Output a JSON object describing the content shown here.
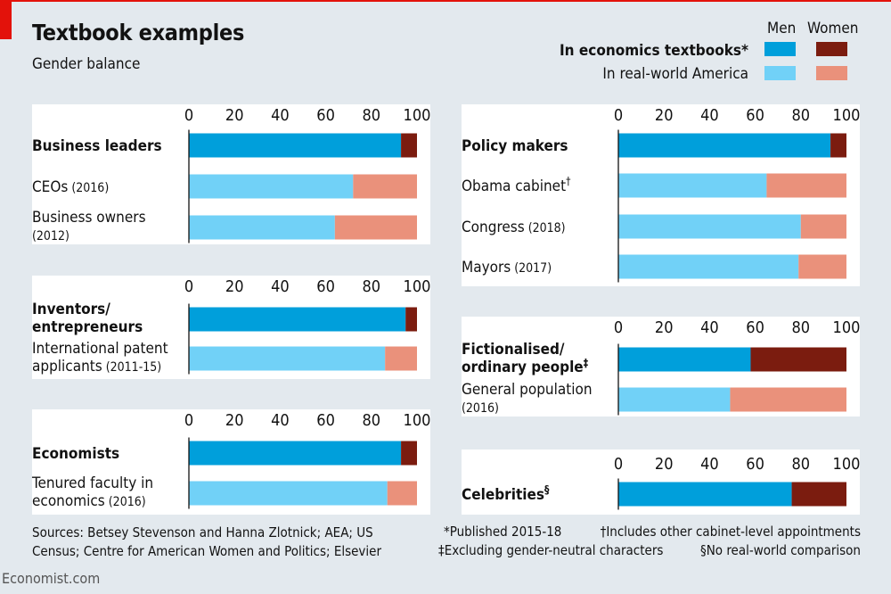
{
  "header": {
    "title": "Textbook examples",
    "subtitle": "Gender balance"
  },
  "legend": {
    "men": "Men",
    "women": "Women",
    "textbooks": "In economics textbooks*",
    "realworld": "In real-world America"
  },
  "colors": {
    "men_textbook": "#009fdb",
    "women_textbook": "#7b1c0f",
    "men_real": "#71d1f7",
    "women_real": "#ea917b",
    "panel": "#ffffff",
    "background": "#e3e9ee",
    "brand_red": "#e3120b"
  },
  "chart_data": {
    "type": "bar",
    "stacked": true,
    "orientation": "horizontal",
    "unit": "%",
    "xlim": [
      0,
      100
    ],
    "ticks": [
      "0",
      "20",
      "40",
      "60",
      "80",
      "100"
    ],
    "series_names": [
      "Men",
      "Women"
    ],
    "panels": [
      {
        "rows": [
          {
            "label": "Business leaders",
            "bold": true,
            "kind": "textbook",
            "men": 93,
            "women": 7
          },
          {
            "label": "CEOs",
            "sub": "(2016)",
            "kind": "real",
            "men": 72,
            "women": 28
          },
          {
            "label": "Business owners",
            "label2": "",
            "sub": "(2012)",
            "kind": "real",
            "men": 64,
            "women": 36
          }
        ]
      },
      {
        "rows": [
          {
            "label": "Inventors/",
            "label2": "entrepreneurs",
            "bold": true,
            "kind": "textbook",
            "men": 95,
            "women": 5
          },
          {
            "label": "International patent",
            "label2": "applicants",
            "sub": "(2011-15)",
            "kind": "real",
            "men": 86,
            "women": 14
          }
        ]
      },
      {
        "rows": [
          {
            "label": "Economists",
            "bold": true,
            "kind": "textbook",
            "men": 93,
            "women": 7
          },
          {
            "label": "Tenured faculty in",
            "label2": "economics",
            "sub": "(2016)",
            "kind": "real",
            "men": 87,
            "women": 13
          }
        ]
      },
      {
        "rows": [
          {
            "label": "Policy makers",
            "bold": true,
            "kind": "textbook",
            "men": 93,
            "women": 7
          },
          {
            "label": "Obama cabinet",
            "sup": "†",
            "kind": "real",
            "men": 65,
            "women": 35
          },
          {
            "label": "Congress",
            "sub": "(2018)",
            "kind": "real",
            "men": 80,
            "women": 20
          },
          {
            "label": "Mayors",
            "sub": "(2017)",
            "kind": "real",
            "men": 79,
            "women": 21
          }
        ]
      },
      {
        "rows": [
          {
            "label": "Fictionalised/",
            "label2": "ordinary people",
            "sup": "‡",
            "bold": true,
            "kind": "textbook",
            "men": 58,
            "women": 42
          },
          {
            "label": "General population",
            "label2": "",
            "sub": "(2016)",
            "kind": "real",
            "men": 49,
            "women": 51
          }
        ]
      },
      {
        "rows": [
          {
            "label": "Celebrities",
            "sup": "§",
            "bold": true,
            "kind": "textbook",
            "men": 76,
            "women": 24
          }
        ]
      }
    ]
  },
  "footer": {
    "source_line1": "Sources: Betsey Stevenson and Hanna Zlotnick; AEA; US",
    "source_line2": "Census; Centre for American Women and Politics; Elsevier",
    "note_published": "*Published 2015-18",
    "note_dagger": "†Includes other cabinet-level appointments",
    "note_ddagger": "‡Excluding gender-neutral characters",
    "note_section": "§No real-world comparison",
    "brand": "Economist.com"
  }
}
